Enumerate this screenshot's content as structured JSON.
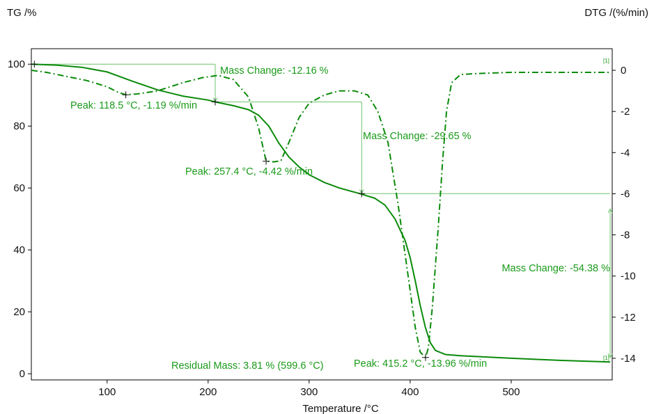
{
  "chart_data": {
    "type": "line",
    "y_axis_title": "TG /%",
    "y2_axis_title": "DTG /(%/min)",
    "x_axis_title": "Temperature /°C",
    "xlim": [
      25,
      600
    ],
    "ylim": [
      -2,
      105
    ],
    "y2lim": [
      -15.05,
      1.05
    ],
    "x_ticks": [
      100,
      200,
      300,
      400,
      500
    ],
    "y_ticks": [
      0,
      20,
      40,
      60,
      80,
      100
    ],
    "y2_ticks": [
      0,
      -2,
      -4,
      -6,
      -8,
      -10,
      -12,
      -14
    ],
    "colors": {
      "curve": "#0a8a0a",
      "annotation": "#1a9a1a",
      "guide": "#6fc46f",
      "axis": "#000000"
    },
    "series": [
      {
        "axis": "left",
        "style": "solid",
        "points": [
          [
            25,
            100
          ],
          [
            50,
            99.7
          ],
          [
            75,
            99
          ],
          [
            100,
            97.5
          ],
          [
            125,
            94.5
          ],
          [
            150,
            91.7
          ],
          [
            175,
            89.7
          ],
          [
            200,
            88.4
          ],
          [
            207,
            87.8
          ],
          [
            225,
            86.6
          ],
          [
            240,
            85.3
          ],
          [
            250,
            83.5
          ],
          [
            260,
            80
          ],
          [
            270,
            74.5
          ],
          [
            280,
            70
          ],
          [
            290,
            66.8
          ],
          [
            300,
            64.3
          ],
          [
            315,
            61.8
          ],
          [
            330,
            60
          ],
          [
            350,
            58.2
          ],
          [
            365,
            56.7
          ],
          [
            375,
            54.5
          ],
          [
            385,
            50
          ],
          [
            395,
            43
          ],
          [
            400,
            37.5
          ],
          [
            405,
            30
          ],
          [
            410,
            22
          ],
          [
            415,
            15
          ],
          [
            420,
            10
          ],
          [
            425,
            7.5
          ],
          [
            435,
            6.2
          ],
          [
            450,
            5.8
          ],
          [
            500,
            5
          ],
          [
            550,
            4.3
          ],
          [
            598,
            3.8
          ]
        ]
      },
      {
        "axis": "right",
        "style": "dashdot",
        "points": [
          [
            25,
            0
          ],
          [
            40,
            -0.1
          ],
          [
            60,
            -0.3
          ],
          [
            80,
            -0.5
          ],
          [
            100,
            -0.8
          ],
          [
            110,
            -1.05
          ],
          [
            118.5,
            -1.19
          ],
          [
            130,
            -1.15
          ],
          [
            150,
            -1.0
          ],
          [
            175,
            -0.6
          ],
          [
            195,
            -0.35
          ],
          [
            210,
            -0.25
          ],
          [
            225,
            -0.45
          ],
          [
            240,
            -1.3
          ],
          [
            250,
            -2.8
          ],
          [
            257.4,
            -4.42
          ],
          [
            265,
            -4.45
          ],
          [
            272,
            -4.4
          ],
          [
            280,
            -3.5
          ],
          [
            290,
            -2.3
          ],
          [
            300,
            -1.6
          ],
          [
            315,
            -1.2
          ],
          [
            330,
            -1.0
          ],
          [
            345,
            -1.0
          ],
          [
            358,
            -1.2
          ],
          [
            368,
            -2.0
          ],
          [
            378,
            -3.5
          ],
          [
            388,
            -6.5
          ],
          [
            398,
            -10
          ],
          [
            405,
            -12.5
          ],
          [
            410,
            -13.7
          ],
          [
            415.2,
            -13.96
          ],
          [
            418,
            -13.5
          ],
          [
            422,
            -11.5
          ],
          [
            428,
            -7.5
          ],
          [
            432,
            -4.5
          ],
          [
            436,
            -2
          ],
          [
            441,
            -0.6
          ],
          [
            450,
            -0.2
          ],
          [
            470,
            -0.15
          ],
          [
            500,
            -0.1
          ],
          [
            550,
            -0.1
          ],
          [
            598,
            -0.1
          ]
        ]
      }
    ],
    "peak_markers": [
      [
        118.5,
        -1.19
      ],
      [
        257.4,
        -4.42
      ],
      [
        415.2,
        -13.96
      ]
    ],
    "tg_markers": [
      [
        207,
        87.8
      ],
      [
        352,
        58.2
      ]
    ],
    "start_marker": [
      28,
      100
    ],
    "end_markers": [
      "[1]",
      "[1]"
    ],
    "annotations": {
      "mass_change_1": "Mass Change: -12.16 %",
      "mass_change_2": "Mass Change: -29.65 %",
      "mass_change_3": "Mass Change: -54.38 %",
      "peak_1": "Peak: 118.5 °C, -1.19 %/min",
      "peak_2": "Peak: 257.4 °C, -4.42 %/min",
      "peak_3": "Peak: 415.2 °C, -13.96 %/min",
      "residual": "Residual Mass: 3.81 % (599.6 °C)"
    },
    "grid": false
  }
}
